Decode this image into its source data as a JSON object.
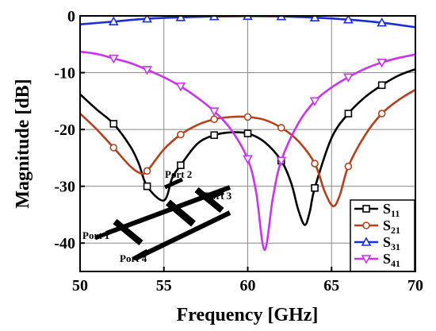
{
  "chart_data": {
    "type": "line",
    "title": "",
    "xlabel": "Frequency [GHz]",
    "ylabel": "Magnitude [dB]",
    "xlim": [
      50,
      70
    ],
    "ylim": [
      -45,
      0
    ],
    "xticks": [
      "50",
      "55",
      "60",
      "65",
      "70"
    ],
    "yticks": [
      "0",
      "-10",
      "-20",
      "-30",
      "-40"
    ],
    "grid": true,
    "legend_position": "bottom-right",
    "series": [
      {
        "name": "S11",
        "color": "#000000",
        "marker": "square",
        "points": [
          [
            50,
            -13.8
          ],
          [
            51,
            -16.5
          ],
          [
            52,
            -19.0
          ],
          [
            53,
            -23.0
          ],
          [
            53.5,
            -26.0
          ],
          [
            54.0,
            -30.0
          ],
          [
            55.0,
            -32.5
          ],
          [
            55.5,
            -28.5
          ],
          [
            56,
            -26.3
          ],
          [
            57,
            -22.5
          ],
          [
            58,
            -21.0
          ],
          [
            59,
            -20.5
          ],
          [
            60,
            -20.7
          ],
          [
            61,
            -22.2
          ],
          [
            62,
            -25.5
          ],
          [
            62.6,
            -29.5
          ],
          [
            63.0,
            -34.0
          ],
          [
            63.4,
            -36.8
          ],
          [
            63.7,
            -34.5
          ],
          [
            64,
            -30.3
          ],
          [
            65,
            -21.5
          ],
          [
            66,
            -17.2
          ],
          [
            67,
            -14.3
          ],
          [
            68,
            -12.2
          ],
          [
            69,
            -10.5
          ],
          [
            70,
            -9.4
          ]
        ],
        "marker_x": [
          52,
          54,
          56,
          58,
          60,
          62,
          64,
          66,
          68
        ]
      },
      {
        "name": "S21",
        "color": "#b5401a",
        "marker": "circle",
        "points": [
          [
            50,
            -17.2
          ],
          [
            51,
            -20.0
          ],
          [
            52,
            -23.2
          ],
          [
            53,
            -26.5
          ],
          [
            53.6,
            -27.7
          ],
          [
            54,
            -27.3
          ],
          [
            55,
            -23.5
          ],
          [
            56,
            -20.9
          ],
          [
            57,
            -19.2
          ],
          [
            58,
            -18.2
          ],
          [
            59,
            -17.8
          ],
          [
            60,
            -17.8
          ],
          [
            61,
            -18.3
          ],
          [
            62,
            -19.7
          ],
          [
            63,
            -22.0
          ],
          [
            64,
            -26.0
          ],
          [
            64.6,
            -31.0
          ],
          [
            65.1,
            -33.5
          ],
          [
            65.5,
            -31.5
          ],
          [
            66,
            -26.5
          ],
          [
            67,
            -21.0
          ],
          [
            68,
            -17.2
          ],
          [
            69,
            -14.8
          ],
          [
            70,
            -13.0
          ]
        ],
        "marker_x": [
          52,
          54,
          56,
          58,
          60,
          62,
          64,
          66,
          68
        ]
      },
      {
        "name": "S31",
        "color": "#1a2fd6",
        "marker": "triangle-up",
        "points": [
          [
            50,
            -1.5
          ],
          [
            52,
            -1.0
          ],
          [
            54,
            -0.5
          ],
          [
            56,
            -0.25
          ],
          [
            58,
            -0.1
          ],
          [
            60,
            -0.05
          ],
          [
            62,
            -0.1
          ],
          [
            64,
            -0.3
          ],
          [
            66,
            -0.65
          ],
          [
            68,
            -1.2
          ],
          [
            70,
            -2.0
          ]
        ],
        "marker_x": [
          52,
          54,
          56,
          58,
          60,
          62,
          64,
          66,
          68
        ]
      },
      {
        "name": "S41",
        "color": "#cc33ee",
        "marker": "triangle-down",
        "points": [
          [
            50,
            -6.3
          ],
          [
            51,
            -6.7
          ],
          [
            52,
            -7.5
          ],
          [
            53,
            -8.3
          ],
          [
            54,
            -9.5
          ],
          [
            55,
            -10.8
          ],
          [
            56,
            -12.4
          ],
          [
            57,
            -14.4
          ],
          [
            58,
            -16.8
          ],
          [
            59,
            -20.0
          ],
          [
            60,
            -25.2
          ],
          [
            60.5,
            -31.0
          ],
          [
            61.0,
            -41.2
          ],
          [
            61.5,
            -32.0
          ],
          [
            62,
            -25.5
          ],
          [
            63,
            -19.0
          ],
          [
            64,
            -15.0
          ],
          [
            65,
            -12.6
          ],
          [
            66,
            -10.8
          ],
          [
            67,
            -9.3
          ],
          [
            68,
            -8.2
          ],
          [
            69,
            -7.4
          ],
          [
            70,
            -6.8
          ]
        ],
        "marker_x": [
          52,
          54,
          56,
          58,
          60,
          62,
          64,
          66,
          68
        ]
      }
    ],
    "legend": [
      {
        "base": "S",
        "sub": "11"
      },
      {
        "base": "S",
        "sub": "21"
      },
      {
        "base": "S",
        "sub": "31"
      },
      {
        "base": "S",
        "sub": "41"
      }
    ],
    "inset": {
      "description_icon": "four-port-coupler-layout-icon",
      "ports": [
        "Port 1",
        "Port 2",
        "Port 3",
        "Port 4"
      ]
    }
  }
}
